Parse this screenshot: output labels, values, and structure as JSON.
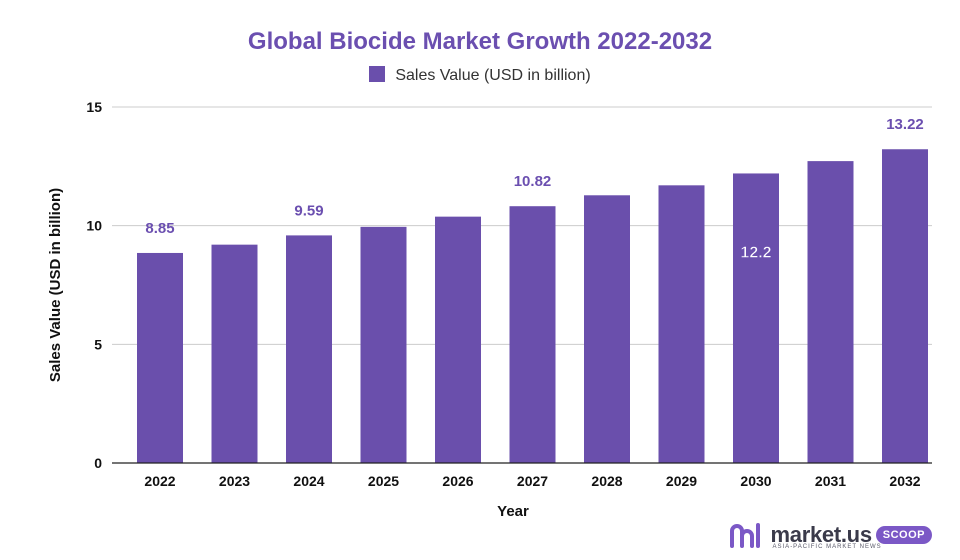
{
  "chart_data": {
    "type": "bar",
    "title": "Global Biocide Market Growth 2022-2032",
    "xlabel": "Year",
    "ylabel": "Sales Value (USD in billion)",
    "categories": [
      "2022",
      "2023",
      "2024",
      "2025",
      "2026",
      "2027",
      "2028",
      "2029",
      "2030",
      "2031",
      "2032"
    ],
    "series": [
      {
        "name": "Sales Value (USD in billion)",
        "values": [
          8.85,
          9.2,
          9.59,
          9.95,
          10.38,
          10.82,
          11.28,
          11.7,
          12.2,
          12.72,
          13.22
        ]
      }
    ],
    "data_labels": [
      {
        "category": "2022",
        "text": "8.85"
      },
      {
        "category": "2024",
        "text": "9.59"
      },
      {
        "category": "2027",
        "text": "10.82"
      },
      {
        "category": "2030",
        "text": "12.2",
        "position": "inside"
      },
      {
        "category": "2032",
        "text": "13.22"
      }
    ],
    "ylim": [
      0,
      15
    ],
    "yticks": [
      0,
      5,
      10,
      15
    ],
    "grid": true,
    "legend": "top-center",
    "colors": {
      "bar": "#6a4fac",
      "title": "#6b4fb0",
      "grid": "#cccccc",
      "axis": "#222222"
    }
  },
  "brand": {
    "name": "market.us",
    "tagline": "ASIA-PACIFIC MARKET NEWS",
    "badge": "SCOOP",
    "icon": "market-us-logo-icon"
  }
}
